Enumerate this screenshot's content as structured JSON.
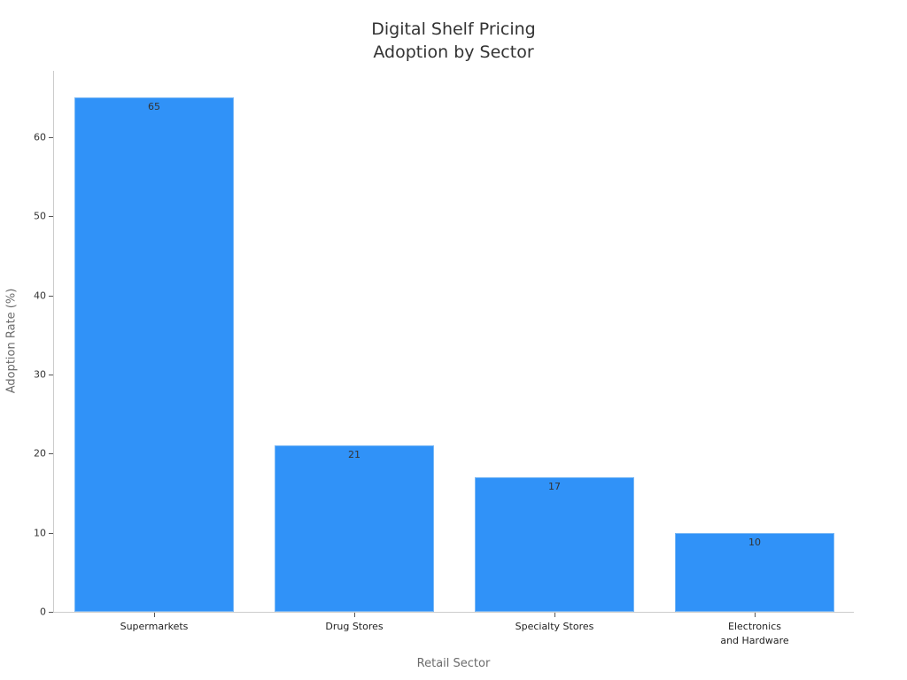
{
  "chart_data": {
    "type": "bar",
    "title": "Digital Shelf Pricing\nAdoption by Sector",
    "title_lines": [
      "Digital Shelf Pricing",
      "Adoption by Sector"
    ],
    "xlabel": "Retail Sector",
    "ylabel": "Adoption Rate (%)",
    "categories": [
      "Supermarkets",
      "Drug Stores",
      "Specialty Stores",
      "Electronics\nand Hardware"
    ],
    "category_lines": [
      [
        "Supermarkets"
      ],
      [
        "Drug Stores"
      ],
      [
        "Specialty Stores"
      ],
      [
        "Electronics",
        "and Hardware"
      ]
    ],
    "values": [
      65,
      21,
      17,
      10
    ],
    "data_labels": [
      "65",
      "21",
      "17",
      "10"
    ],
    "yticks": [
      0,
      10,
      20,
      30,
      40,
      50,
      60
    ],
    "ylim": [
      0,
      68.5
    ],
    "grid": false,
    "legend": null,
    "bar_color": "#3092f8"
  }
}
